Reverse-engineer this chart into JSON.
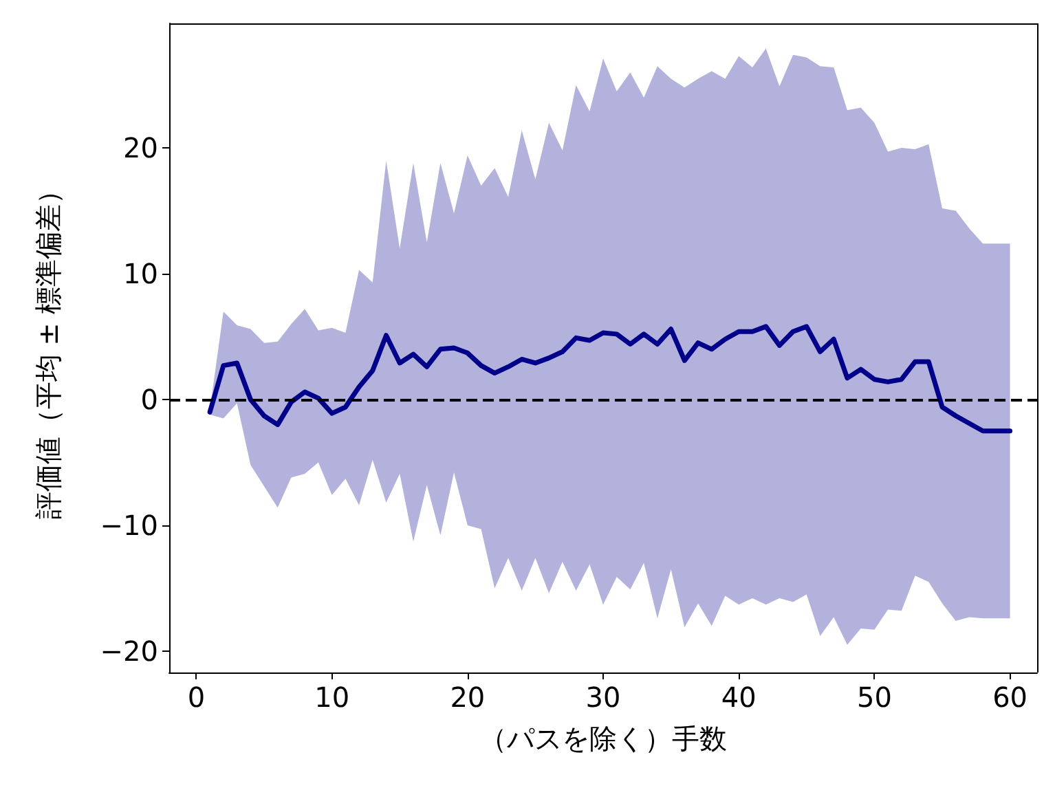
{
  "chart_data": {
    "type": "line",
    "xlabel": "（パスを除く）手数",
    "ylabel": "評価値（平均 ± 標準偏差）",
    "x": [
      1,
      2,
      3,
      4,
      5,
      6,
      7,
      8,
      9,
      10,
      11,
      12,
      13,
      14,
      15,
      16,
      17,
      18,
      19,
      20,
      21,
      22,
      23,
      24,
      25,
      26,
      27,
      28,
      29,
      30,
      31,
      32,
      33,
      34,
      35,
      36,
      37,
      38,
      39,
      40,
      41,
      42,
      43,
      44,
      45,
      46,
      47,
      48,
      49,
      50,
      51,
      52,
      53,
      54,
      55,
      56,
      57,
      58,
      59,
      60
    ],
    "series": [
      {
        "color": "#00008b",
        "values": [
          -1,
          2.7,
          2.9,
          0,
          -1.3,
          -2,
          -0.2,
          0.6,
          0.1,
          -1.1,
          -0.6,
          1,
          2.3,
          5.1,
          2.9,
          3.6,
          2.6,
          4,
          4.1,
          3.7,
          2.7,
          2.1,
          2.6,
          3.2,
          2.9,
          3.3,
          3.8,
          4.9,
          4.7,
          5.3,
          5.2,
          4.4,
          5.2,
          4.4,
          5.6,
          3.1,
          4.5,
          4,
          4.8,
          5.4,
          5.4,
          5.8,
          4.3,
          5.4,
          5.8,
          3.8,
          4.8,
          1.7,
          2.4,
          1.6,
          1.4,
          1.6,
          3,
          3,
          -0.6,
          -1.3,
          -1.9,
          -2.5,
          -2.5,
          -2.5
        ],
        "upper": [
          -0.8,
          7,
          5.9,
          5.6,
          4.5,
          4.6,
          6,
          7.2,
          5.5,
          5.7,
          5.3,
          10.3,
          9.3,
          19,
          12,
          18.8,
          12.5,
          18.8,
          14.8,
          19.4,
          17,
          18.4,
          16.1,
          21.4,
          17.5,
          22,
          19.8,
          25,
          22.9,
          27.1,
          24.5,
          26,
          24,
          26.5,
          25.5,
          24.8,
          25.5,
          26.1,
          25.5,
          27.3,
          26.4,
          27.9,
          24.9,
          27.4,
          27.2,
          26.5,
          26.4,
          23,
          23.2,
          22,
          19.7,
          20,
          19.9,
          20.3,
          15.2,
          15,
          13.6,
          12.4,
          12.4,
          12.4
        ],
        "lower": [
          -1.2,
          -1.5,
          -0.3,
          -5.2,
          -6.9,
          -8.6,
          -6.2,
          -5.9,
          -5,
          -7.6,
          -6.3,
          -8.4,
          -4.8,
          -8.2,
          -5.9,
          -11.3,
          -6.8,
          -10.8,
          -5.8,
          -10,
          -10.3,
          -15,
          -12.6,
          -15.2,
          -12.6,
          -15.4,
          -12.9,
          -15.2,
          -13.1,
          -16.3,
          -14.1,
          -15.1,
          -13,
          -17.4,
          -13.5,
          -18.1,
          -16.2,
          -18,
          -15.6,
          -16.3,
          -15.8,
          -16.3,
          -15.8,
          -16.1,
          -15.5,
          -18.8,
          -17.3,
          -19.5,
          -18.2,
          -18.3,
          -16.7,
          -16.8,
          -14,
          -14.5,
          -16.2,
          -17.6,
          -17.3,
          -17.4,
          -17.4,
          -17.4
        ]
      }
    ],
    "ref_lines": [
      {
        "axis": "y",
        "value": 0,
        "color": "#000000",
        "line_style": "dashed"
      }
    ],
    "xlim": [
      -2,
      62
    ],
    "xticks": [
      0,
      10,
      20,
      30,
      40,
      50,
      60
    ],
    "ylim": [
      -21.7,
      29.9
    ],
    "yticks": [
      {
        "value": -20,
        "label": "−20"
      },
      {
        "value": -10,
        "label": "−10"
      },
      0,
      10,
      20
    ],
    "grid": false,
    "marker": "none",
    "line_style": "solid"
  }
}
